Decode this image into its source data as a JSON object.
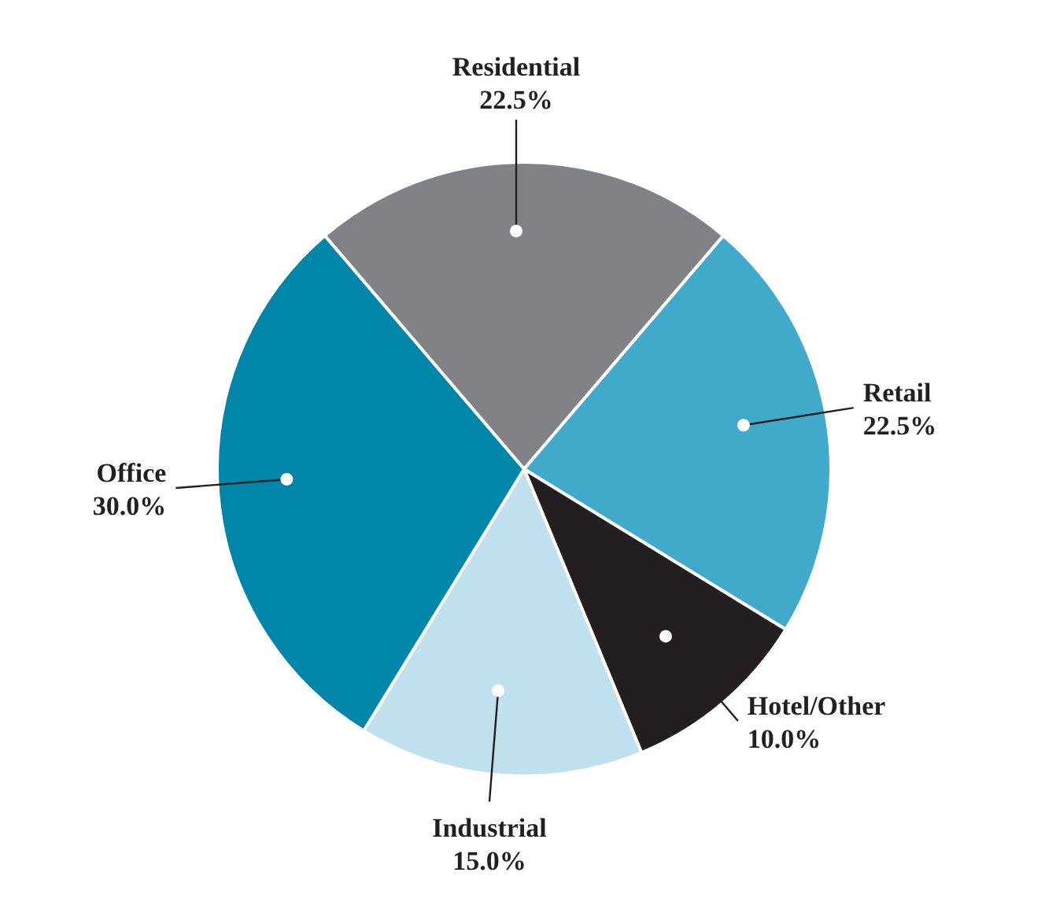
{
  "chart_data": {
    "type": "pie",
    "categories": [
      "Residential",
      "Retail",
      "Hotel/Other",
      "Industrial",
      "Office"
    ],
    "values": [
      22.5,
      22.5,
      10.0,
      15.0,
      30.0
    ],
    "value_labels": [
      "22.5%",
      "22.5%",
      "10.0%",
      "15.0%",
      "30.0%"
    ],
    "colors": [
      "#808285",
      "#41a9c9",
      "#231f20",
      "#bfe0ec",
      "#0086a8"
    ]
  }
}
